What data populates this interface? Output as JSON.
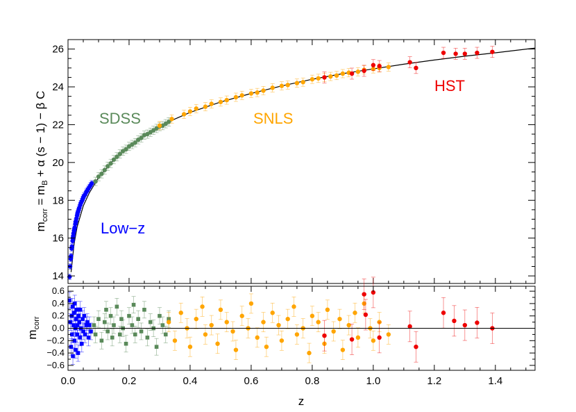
{
  "chart_data": [
    {
      "type": "scatter",
      "panel": "hubble-diagram",
      "title": "",
      "xlabel": "z",
      "ylabel": "m_corr = m_B + α (s − 1) − β C",
      "ylabel_parts": {
        "main": "m",
        "main_sub": "corr",
        "eq": " = m",
        "eq_sub": "B",
        "rest": " + α (s − 1) − β C"
      },
      "xlim": [
        0.0,
        1.53
      ],
      "ylim": [
        13.6,
        26.5
      ],
      "xticks": [
        "0.0",
        "0.2",
        "0.4",
        "0.6",
        "0.8",
        "1.0",
        "1.2",
        "1.4"
      ],
      "xtick_values": [
        0.0,
        0.2,
        0.4,
        0.6,
        0.8,
        1.0,
        1.2,
        1.4
      ],
      "yticks": [
        "14",
        "16",
        "18",
        "20",
        "22",
        "24",
        "26"
      ],
      "ytick_values": [
        14,
        16,
        18,
        20,
        22,
        24,
        26
      ],
      "model_curve": {
        "name": "best-fit cosmology",
        "x": [
          0.01,
          0.02,
          0.03,
          0.05,
          0.07,
          0.1,
          0.15,
          0.2,
          0.25,
          0.3,
          0.35,
          0.4,
          0.5,
          0.6,
          0.7,
          0.8,
          0.9,
          1.0,
          1.1,
          1.2,
          1.3,
          1.4,
          1.53
        ],
        "y": [
          14.2,
          15.7,
          16.6,
          17.7,
          18.4,
          19.2,
          20.15,
          20.85,
          21.45,
          21.9,
          22.3,
          22.65,
          23.2,
          23.65,
          24.05,
          24.4,
          24.7,
          24.95,
          25.2,
          25.42,
          25.62,
          25.8,
          26.05
        ]
      },
      "series": [
        {
          "name": "Low-z",
          "color": "#0000ff",
          "marker": "square",
          "label_position": "lower-left",
          "x": [
            0.005,
            0.007,
            0.009,
            0.01,
            0.012,
            0.013,
            0.015,
            0.016,
            0.017,
            0.018,
            0.02,
            0.021,
            0.022,
            0.024,
            0.025,
            0.026,
            0.028,
            0.03,
            0.031,
            0.033,
            0.035,
            0.037,
            0.04,
            0.042,
            0.045,
            0.048,
            0.05,
            0.053,
            0.056,
            0.06,
            0.063,
            0.066,
            0.07,
            0.074,
            0.078
          ],
          "y": [
            13.95,
            14.5,
            14.9,
            15.05,
            15.45,
            15.55,
            15.85,
            16.0,
            16.1,
            16.25,
            16.4,
            16.5,
            16.55,
            16.75,
            16.85,
            16.9,
            17.05,
            17.2,
            17.3,
            17.4,
            17.5,
            17.6,
            17.75,
            17.85,
            17.95,
            18.05,
            18.15,
            18.25,
            18.3,
            18.45,
            18.5,
            18.6,
            18.7,
            18.8,
            18.9
          ],
          "residual_x": [
            0.005,
            0.008,
            0.01,
            0.012,
            0.013,
            0.015,
            0.016,
            0.018,
            0.02,
            0.021,
            0.022,
            0.024,
            0.025,
            0.027,
            0.028,
            0.03,
            0.031,
            0.033,
            0.035,
            0.037,
            0.039,
            0.04,
            0.042,
            0.045,
            0.048,
            0.05,
            0.053,
            0.056,
            0.06,
            0.063,
            0.067,
            0.07,
            0.075
          ],
          "residual_y": [
            0.45,
            0.1,
            -0.3,
            0.2,
            -0.1,
            0.35,
            -0.45,
            0.05,
            0.25,
            -0.2,
            0.4,
            0.0,
            -0.35,
            0.15,
            0.3,
            -0.1,
            0.05,
            -0.4,
            0.2,
            0.1,
            -0.15,
            0.3,
            0.0,
            -0.25,
            0.15,
            -0.05,
            0.2,
            -0.1,
            0.05,
            0.1,
            -0.15,
            0.05,
            -0.05
          ]
        },
        {
          "name": "SDSS",
          "color": "#5a8a5a",
          "marker": "square",
          "label_position": "upper-left",
          "x": [
            0.09,
            0.1,
            0.11,
            0.12,
            0.13,
            0.14,
            0.15,
            0.16,
            0.17,
            0.18,
            0.19,
            0.2,
            0.21,
            0.22,
            0.23,
            0.24,
            0.25,
            0.26,
            0.27,
            0.28,
            0.29,
            0.3,
            0.31,
            0.32,
            0.33
          ],
          "y": [
            19.0,
            19.25,
            19.4,
            19.6,
            19.8,
            19.95,
            20.15,
            20.3,
            20.45,
            20.6,
            20.7,
            20.85,
            20.95,
            21.05,
            21.2,
            21.3,
            21.45,
            21.5,
            21.6,
            21.7,
            21.8,
            21.9,
            21.95,
            22.05,
            22.15
          ],
          "residual_x": [
            0.085,
            0.09,
            0.1,
            0.11,
            0.12,
            0.125,
            0.13,
            0.14,
            0.145,
            0.15,
            0.16,
            0.17,
            0.175,
            0.18,
            0.19,
            0.2,
            0.21,
            0.215,
            0.22,
            0.23,
            0.24,
            0.25,
            0.26,
            0.27,
            0.28,
            0.29,
            0.3,
            0.31,
            0.32,
            0.33
          ],
          "residual_y": [
            0.05,
            -0.1,
            0.15,
            -0.2,
            0.1,
            0.3,
            -0.05,
            0.2,
            -0.15,
            0.05,
            0.35,
            -0.1,
            0.15,
            0.0,
            -0.25,
            0.2,
            0.05,
            0.38,
            -0.1,
            0.15,
            -0.05,
            0.3,
            -0.15,
            0.1,
            0.0,
            -0.3,
            0.2,
            0.05,
            -0.1,
            0.15
          ]
        },
        {
          "name": "SNLS",
          "color": "#ffa500",
          "marker": "circle",
          "label_position": "upper-middle",
          "x": [
            0.3,
            0.34,
            0.38,
            0.4,
            0.42,
            0.45,
            0.47,
            0.5,
            0.52,
            0.55,
            0.57,
            0.6,
            0.62,
            0.64,
            0.67,
            0.7,
            0.72,
            0.75,
            0.77,
            0.8,
            0.82,
            0.84,
            0.86,
            0.88,
            0.9,
            0.92,
            0.95,
            0.97,
            1.0,
            1.02,
            1.05
          ],
          "y": [
            21.95,
            22.3,
            22.55,
            22.7,
            22.85,
            22.95,
            23.1,
            23.2,
            23.3,
            23.45,
            23.55,
            23.65,
            23.7,
            23.8,
            23.95,
            24.05,
            24.1,
            24.2,
            24.25,
            24.4,
            24.45,
            24.5,
            24.55,
            24.6,
            24.7,
            24.75,
            24.8,
            24.9,
            24.95,
            25.0,
            25.05
          ],
          "residual_x": [
            0.33,
            0.35,
            0.37,
            0.39,
            0.4,
            0.42,
            0.44,
            0.45,
            0.47,
            0.49,
            0.5,
            0.52,
            0.54,
            0.55,
            0.57,
            0.59,
            0.6,
            0.62,
            0.64,
            0.65,
            0.67,
            0.69,
            0.7,
            0.72,
            0.74,
            0.75,
            0.77,
            0.79,
            0.8,
            0.82,
            0.84,
            0.85,
            0.87,
            0.89,
            0.9,
            0.92,
            0.94,
            0.95,
            0.97,
            0.99,
            1.0,
            1.02,
            1.05
          ],
          "residual_y": [
            0.1,
            -0.2,
            0.25,
            0.0,
            -0.3,
            0.15,
            0.35,
            -0.1,
            0.05,
            -0.25,
            0.3,
            0.1,
            -0.05,
            -0.35,
            0.2,
            0.0,
            0.4,
            -0.15,
            0.1,
            -0.3,
            0.25,
            0.05,
            -0.2,
            0.15,
            0.35,
            -0.1,
            0.0,
            -0.4,
            0.2,
            0.1,
            -0.25,
            0.3,
            -0.05,
            0.15,
            -0.35,
            0.05,
            0.25,
            -0.15,
            0.4,
            0.0,
            -0.2,
            0.1,
            -0.1
          ]
        },
        {
          "name": "HST",
          "color": "#ee0000",
          "marker": "circle",
          "label_position": "upper-right",
          "x": [
            0.84,
            0.93,
            0.97,
            1.0,
            1.02,
            1.12,
            1.14,
            1.23,
            1.27,
            1.3,
            1.34,
            1.39
          ],
          "y": [
            24.5,
            24.7,
            24.85,
            25.15,
            25.1,
            25.3,
            25.0,
            25.8,
            25.75,
            25.75,
            25.8,
            25.85
          ],
          "residual_x": [
            0.84,
            0.93,
            0.97,
            0.975,
            1.0,
            1.02,
            1.12,
            1.14,
            1.23,
            1.265,
            1.3,
            1.34,
            1.39
          ],
          "residual_y": [
            -0.12,
            -0.18,
            0.55,
            0.22,
            0.58,
            -0.15,
            0.03,
            -0.3,
            0.25,
            0.12,
            0.05,
            0.09,
            0.0
          ]
        }
      ]
    },
    {
      "type": "scatter",
      "panel": "residuals",
      "title": "",
      "xlabel": "z",
      "ylabel": "m_corr",
      "ylabel_parts": {
        "main": "m",
        "main_sub": "corr"
      },
      "xlim": [
        0.0,
        1.53
      ],
      "ylim": [
        -0.68,
        0.68
      ],
      "yticks": [
        "0.6",
        "0.4",
        "0.2",
        "0.0",
        "−0.2",
        "−0.4",
        "−0.6"
      ],
      "ytick_values": [
        0.6,
        0.4,
        0.2,
        0.0,
        -0.2,
        -0.4,
        -0.6
      ],
      "zero_line": 0.0
    }
  ],
  "labels": {
    "low_z": "Low−z",
    "sdss": "SDSS",
    "snls": "SNLS",
    "hst": "HST"
  }
}
